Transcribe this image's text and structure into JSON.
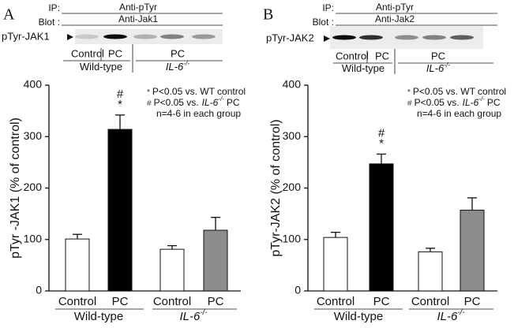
{
  "chart_data": [
    {
      "type": "bar",
      "panel": "A",
      "ylabel": "pTyr -JAK1  (% of control)",
      "categories": [
        "Control",
        "PC",
        "Control",
        "PC"
      ],
      "groups": [
        {
          "label": "Wild-type"
        },
        {
          "label": "IL-6",
          "sup": "-/-",
          "italic": true
        }
      ],
      "values": [
        101,
        314,
        81,
        118
      ],
      "errors": [
        9,
        28,
        7,
        25
      ],
      "colors": [
        "#ffffff",
        "#000000",
        "#ffffff",
        "#8c8c8c"
      ],
      "ylim": [
        0,
        400
      ],
      "yticks": [
        0,
        100,
        200,
        300,
        400
      ],
      "annotations": [
        "#",
        "*"
      ],
      "notes": [
        {
          "symbol": "*",
          "text": "P<0.05 vs. WT control"
        },
        {
          "symbol": "#",
          "text": "P<0.05 vs.",
          "italic": "IL-6",
          "sup": "-/-",
          "after": "PC"
        },
        {
          "text": "n=4-6 in each group"
        }
      ],
      "blot": {
        "ip_label": "IP:",
        "ip": "Anti-pTyr",
        "blot_label": "Blot :",
        "blot": "Anti-Jak1",
        "band": "pTyr-JAK1",
        "lanes": [
          "Control",
          "PC",
          "PC"
        ],
        "groups": [
          {
            "label": "Wild-type"
          },
          {
            "label": "IL-6",
            "sup": "-/-",
            "italic": true
          }
        ]
      }
    },
    {
      "type": "bar",
      "panel": "B",
      "ylabel": "pTyr-JAK2  (% of control)",
      "categories": [
        "Control",
        "PC",
        "Control",
        "PC"
      ],
      "groups": [
        {
          "label": "Wild-type"
        },
        {
          "label": "IL-6",
          "sup": "-/-",
          "italic": true
        }
      ],
      "values": [
        104,
        247,
        76,
        157
      ],
      "errors": [
        10,
        19,
        7,
        24
      ],
      "colors": [
        "#ffffff",
        "#000000",
        "#ffffff",
        "#8c8c8c"
      ],
      "ylim": [
        0,
        400
      ],
      "yticks": [
        0,
        100,
        200,
        300,
        400
      ],
      "annotations": [
        "#",
        "*"
      ],
      "notes": [
        {
          "symbol": "*",
          "text": "P<0.05 vs. WT control"
        },
        {
          "symbol": "#",
          "text": "P<0.05 vs.",
          "italic": "IL-6",
          "sup": "-/-",
          "after": "PC"
        },
        {
          "text": "n=4-6 in each group"
        }
      ],
      "blot": {
        "ip_label": "IP:",
        "ip": "Anti-pTyr",
        "blot_label": "Blot :",
        "blot": "Anti-Jak2",
        "band": "pTyr-JAK2",
        "lanes": [
          "Control",
          "PC",
          "PC"
        ],
        "groups": [
          {
            "label": "Wild-type"
          },
          {
            "label": "IL-6",
            "sup": "-/-",
            "italic": true
          }
        ]
      }
    }
  ]
}
